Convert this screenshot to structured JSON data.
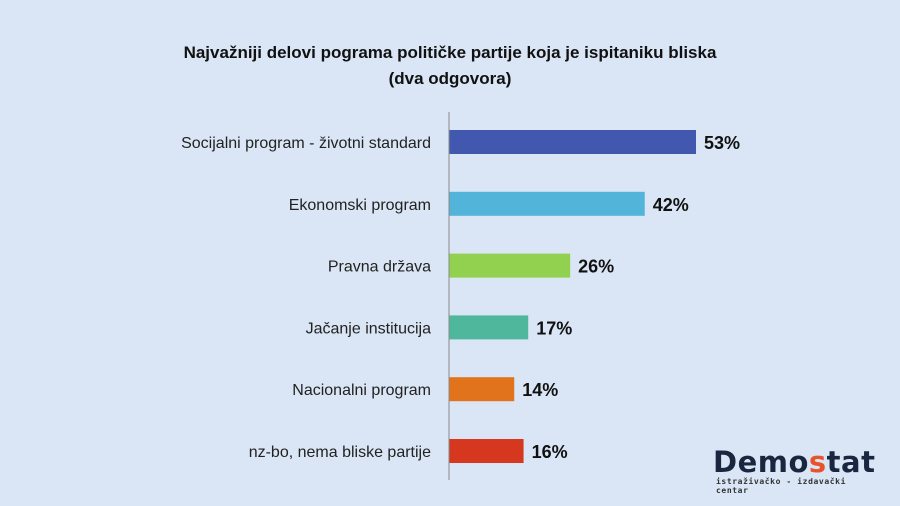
{
  "chart_data": {
    "type": "bar",
    "orientation": "horizontal",
    "title_line1": "Najvažniji delovi pograma političke partije koja je ispitaniku bliska",
    "title_line2": "(dva odgovora)",
    "categories": [
      "Socijalni program - životni standard",
      "Ekonomski program",
      "Pravna država",
      "Jačanje institucija",
      "Nacionalni program",
      "nz-bo, nema bliske partije"
    ],
    "values": [
      53,
      42,
      26,
      17,
      14,
      16
    ],
    "labels": [
      "53%",
      "42%",
      "26%",
      "17%",
      "14%",
      "16%"
    ],
    "colors": [
      "#4258ae",
      "#52b4d8",
      "#92d050",
      "#4fb89c",
      "#e2731d",
      "#d6381f"
    ],
    "xlim": [
      0,
      100
    ],
    "grid": false
  },
  "logo": {
    "text_a": "Demo",
    "text_b": "s",
    "text_c": "tat",
    "subtitle": "istraživačko - izdavački centar"
  }
}
